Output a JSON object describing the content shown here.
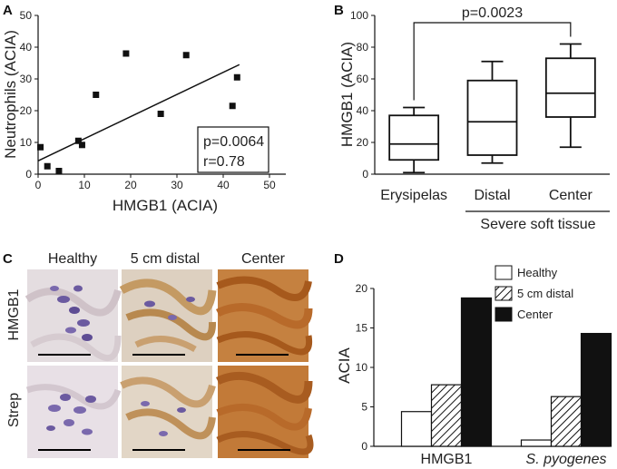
{
  "panel_letters": {
    "a": "A",
    "b": "B",
    "c": "C",
    "d": "D"
  },
  "chart_data": [
    {
      "panel": "A",
      "type": "scatter",
      "xlabel": "HMGB1 (ACIA)",
      "ylabel": "Neutrophils (ACIA)",
      "xlim": [
        0,
        50
      ],
      "ylim": [
        0,
        50
      ],
      "xticks": [
        "0",
        "10",
        "20",
        "30",
        "40",
        "50"
      ],
      "yticks": [
        "0",
        "10",
        "20",
        "30",
        "40",
        "50"
      ],
      "points": [
        {
          "x": 0.5,
          "y": 8.5
        },
        {
          "x": 2,
          "y": 2.5
        },
        {
          "x": 4.5,
          "y": 1
        },
        {
          "x": 8.7,
          "y": 10.5
        },
        {
          "x": 9.5,
          "y": 9.2
        },
        {
          "x": 12.5,
          "y": 25
        },
        {
          "x": 19,
          "y": 38
        },
        {
          "x": 26.5,
          "y": 19
        },
        {
          "x": 32,
          "y": 37.5
        },
        {
          "x": 42,
          "y": 21.5
        },
        {
          "x": 43,
          "y": 30.5
        }
      ],
      "regression": {
        "x0": 0,
        "y0": 4.2,
        "x1": 43.5,
        "y1": 34.5
      },
      "stats": [
        "p=0.0064",
        "r=0.78"
      ],
      "grid": false
    },
    {
      "panel": "B",
      "type": "box",
      "ylabel": "HMGB1 (ACIA)",
      "ylim": [
        0,
        100
      ],
      "yticks": [
        "0",
        "20",
        "40",
        "60",
        "80",
        "100"
      ],
      "categories": [
        "Erysipelas",
        "Distal",
        "Center"
      ],
      "group_label": "Severe soft tissue",
      "boxes": [
        {
          "min": 1,
          "q1": 9,
          "median": 19,
          "q3": 37,
          "max": 42
        },
        {
          "min": 7,
          "q1": 12,
          "median": 33,
          "q3": 59,
          "max": 71
        },
        {
          "min": 17,
          "q1": 36,
          "median": 51,
          "q3": 73,
          "max": 82
        }
      ],
      "significance": {
        "from": "Erysipelas",
        "to": "Center",
        "label": "p=0.0023"
      }
    },
    {
      "panel": "D",
      "type": "bar",
      "ylabel": "ACIA",
      "ylim": [
        0,
        20
      ],
      "yticks": [
        "0",
        "5",
        "10",
        "15",
        "20"
      ],
      "categories": [
        "HMGB1",
        "S. pyogenes"
      ],
      "series": [
        {
          "name": "Healthy",
          "values": [
            4.4,
            0.8
          ]
        },
        {
          "name": "5 cm distal",
          "values": [
            7.8,
            6.3
          ]
        },
        {
          "name": "Center",
          "values": [
            18.8,
            14.3
          ]
        }
      ],
      "legend_position": "top-right",
      "grid": false
    }
  ],
  "micrographs": {
    "columns": [
      "Healthy",
      "5 cm distal",
      "Center"
    ],
    "rows": [
      "HMGB1",
      "Strep"
    ]
  },
  "colors": {
    "healthy_tissue": "#d8d0dc",
    "nuclei": "#6b5aa0",
    "distal_tissue": "#c9a070",
    "center_tissue": "#b86a2a"
  }
}
